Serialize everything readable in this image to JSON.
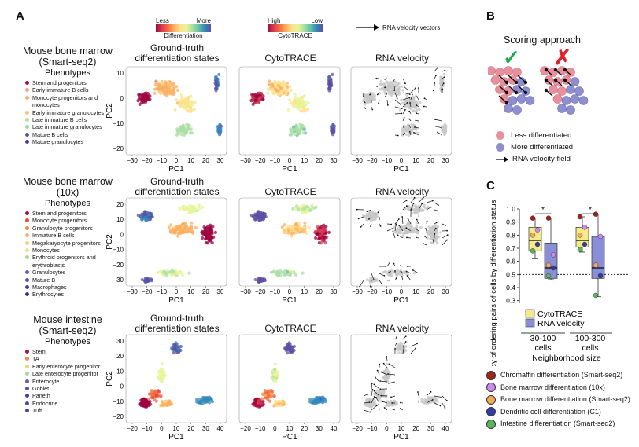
{
  "panels": {
    "a": "A",
    "b": "B",
    "c": "C"
  },
  "top_legend": {
    "diff": {
      "less": "Less",
      "more": "More",
      "label": "Differentiation"
    },
    "cyto": {
      "high": "High",
      "low": "Low",
      "label": "CytoTRACE"
    },
    "velocity": "RNA velocity vectors"
  },
  "column_titles": {
    "ground_truth": "Ground-truth differentiation states",
    "cytotrace": "CytoTRACE",
    "velocity": "RNA velocity"
  },
  "axis": {
    "x": "PC1",
    "y": "PC2"
  },
  "datasets": [
    {
      "title_line1": "Mouse bone marrow",
      "title_line2": "(Smart-seq2)",
      "phenotypes_label": "Phenotypes",
      "phenotypes": [
        {
          "name": "Stem and progenitors",
          "color": "#a4123f"
        },
        {
          "name": "Early immature B cells",
          "color": "#f5a67a"
        },
        {
          "name": "Monocyte progenitors and monocytes",
          "color": "#f7b178"
        },
        {
          "name": "Early immature granulocytes",
          "color": "#f7c181"
        },
        {
          "name": "Late immature B cells",
          "color": "#b6df9c"
        },
        {
          "name": "Late immature granulocytes",
          "color": "#a6d8a4"
        },
        {
          "name": "Mature B cells",
          "color": "#5a4fa6"
        },
        {
          "name": "Mature granulocytes",
          "color": "#4b3f9c"
        }
      ],
      "xticks": [
        "−30",
        "−20",
        "−10",
        "0",
        "10",
        "20",
        "30"
      ],
      "yticks": [
        "10",
        "0",
        "−10",
        "−20"
      ]
    },
    {
      "title_line1": "Mouse bone marrow",
      "title_line2": "(10x)",
      "phenotypes_label": "Phenotypes",
      "phenotypes": [
        {
          "name": "Stem and progenitors",
          "color": "#a4123f"
        },
        {
          "name": "Monocyte progenitors",
          "color": "#e2513c"
        },
        {
          "name": "Granulocyte progenitors",
          "color": "#f08a4f"
        },
        {
          "name": "Immature B cells",
          "color": "#f7b178"
        },
        {
          "name": "Megakaryocyte progenitors",
          "color": "#f8cf86"
        },
        {
          "name": "Monocytes",
          "color": "#ece48f"
        },
        {
          "name": "Erythroid progenitors and erythroblasts",
          "color": "#a6d8a4"
        },
        {
          "name": "Granulocytes",
          "color": "#6a5cb0"
        },
        {
          "name": "Mature B",
          "color": "#5a4fa6"
        },
        {
          "name": "Macrophages",
          "color": "#4b3f9c"
        },
        {
          "name": "Erythrocytes",
          "color": "#3f358f"
        }
      ],
      "xticks": [
        "−30",
        "−20",
        "−10",
        "0",
        "10",
        "20",
        "30"
      ],
      "yticks": [
        "20",
        "10",
        "0",
        "−10",
        "−20",
        "−30"
      ]
    },
    {
      "title_line1": "Mouse intestine",
      "title_line2": "(Smart-seq2)",
      "phenotypes_label": "Phenotypes",
      "phenotypes": [
        {
          "name": "Stem",
          "color": "#a4123f"
        },
        {
          "name": "TA",
          "color": "#f08a4f"
        },
        {
          "name": "Early enterocyte progenitor",
          "color": "#f8cf86"
        },
        {
          "name": "Late enterocyte progenitor",
          "color": "#a6d8a4"
        },
        {
          "name": "Enterocyte",
          "color": "#6a5cb0"
        },
        {
          "name": "Goblet",
          "color": "#5a4fa6"
        },
        {
          "name": "Paneth",
          "color": "#4b3f9c"
        },
        {
          "name": "Endocrine",
          "color": "#5549a0"
        },
        {
          "name": "Tuft",
          "color": "#4e42a0"
        }
      ],
      "xticks": [
        "−20",
        "−10",
        "0",
        "10",
        "20",
        "30",
        "40"
      ],
      "yticks": [
        "30",
        "20",
        "10",
        "0",
        "−10",
        "−20"
      ]
    }
  ],
  "panel_b": {
    "title": "Scoring approach",
    "check": "✓",
    "cross": "✗",
    "legend": {
      "less": "Less differentiated",
      "more": "More differentiated",
      "field": "RNA velocity field"
    },
    "colors": {
      "less": "#e9909e",
      "more": "#8f8fd0",
      "check": "#1fa84f",
      "cross": "#d8262c"
    }
  },
  "chart_data": {
    "type": "box",
    "title": "",
    "ylabel": "Accuracy of ordering pairs of cells by differentiation status",
    "xlabel": "Neighborhood size",
    "categories": [
      "30-100 cells",
      "100-300 cells"
    ],
    "yticks": [
      "0.3",
      "0.4",
      "0.5",
      "0.6",
      "0.7",
      "0.8",
      "0.9",
      "1.0"
    ],
    "ylim": [
      0.28,
      1.0
    ],
    "reference_line": 0.5,
    "significance": "*",
    "series": [
      {
        "name": "CytoTRACE",
        "color": "#f4ea8a",
        "boxes": [
          {
            "min": 0.62,
            "q1": 0.68,
            "median": 0.76,
            "q3": 0.86,
            "max": 0.93,
            "points": [
              0.93,
              0.84,
              0.8,
              0.73,
              0.68
            ]
          },
          {
            "min": 0.67,
            "q1": 0.71,
            "median": 0.76,
            "q3": 0.86,
            "max": 0.94,
            "points": [
              0.94,
              0.86,
              0.8,
              0.73,
              0.69
            ]
          }
        ]
      },
      {
        "name": "RNA velocity",
        "color": "#8a8ed6",
        "boxes": [
          {
            "min": 0.46,
            "q1": 0.47,
            "median": 0.55,
            "q3": 0.74,
            "max": 0.93,
            "points": [
              0.93,
              0.65,
              0.57,
              0.55,
              0.49
            ]
          },
          {
            "min": 0.33,
            "q1": 0.47,
            "median": 0.55,
            "q3": 0.79,
            "max": 0.96,
            "points": [
              0.96,
              0.79,
              0.57,
              0.49,
              0.34
            ]
          }
        ]
      }
    ],
    "legend": [
      {
        "name": "Chromaffin differentiation (Smart-seq2)",
        "color": "#a4221c"
      },
      {
        "name": "Bone marrow differentiation (10x)",
        "color": "#cf8af0"
      },
      {
        "name": "Bone marrow differentiation (Smart-seq2)",
        "color": "#f3a956"
      },
      {
        "name": "Dendritic cell differentiation (C1)",
        "color": "#2f3e9e"
      },
      {
        "name": "Intestine differentiation (Smart-seq2)",
        "color": "#59b65a"
      }
    ]
  }
}
